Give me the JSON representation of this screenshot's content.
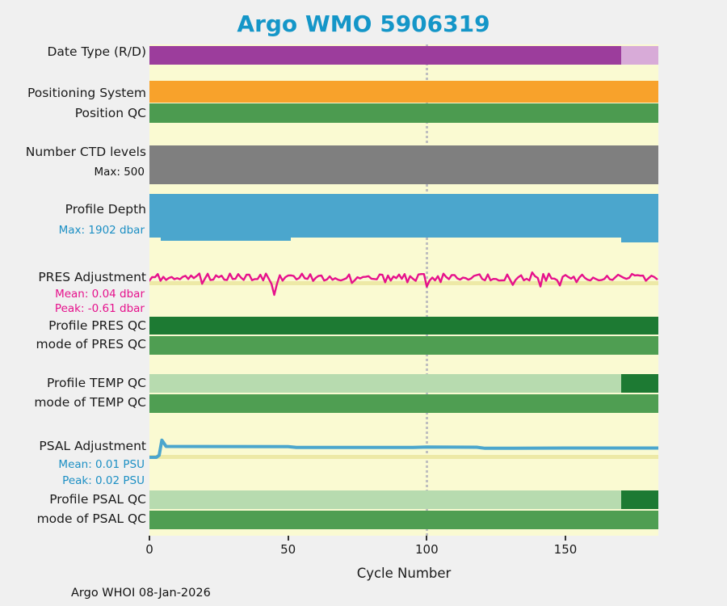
{
  "title": "Argo WMO 5906319",
  "footer": "Argo WHOI 08-Jan-2026",
  "colors": {
    "background": "#F0F0F0",
    "plot_bg": "#FAFAD2",
    "band": "#EDE9A6",
    "marker": "#BFBFBF",
    "title": "#1496C8",
    "text": "#1A1A1A",
    "sub_blue": "#1C8FC4",
    "sub_magenta": "#E6118C"
  },
  "x_axis": {
    "label": "Cycle Number",
    "ticks": [
      0,
      50,
      100,
      150
    ]
  },
  "chart_data": {
    "type": "bar",
    "subtype": "status-timeline",
    "title": "Argo WMO 5906319",
    "xlabel": "Cycle Number",
    "x_range": [
      0,
      183.5
    ],
    "x_ticks": [
      0,
      50,
      100,
      150
    ],
    "marker_x": 100,
    "grid": false,
    "rows": [
      {
        "id": "date-type",
        "label": "Date Type (R/D)",
        "kind": "bar",
        "segments": [
          {
            "from": 0,
            "to": 170,
            "color": "#9C3D9C"
          },
          {
            "from": 170,
            "to": 183.5,
            "color": "#D8ABD8"
          }
        ]
      },
      {
        "id": "positioning-system",
        "label": "Positioning System",
        "kind": "bar",
        "segments": [
          {
            "from": 0,
            "to": 183.5,
            "color": "#F8A22B"
          }
        ]
      },
      {
        "id": "position-qc",
        "label": "Position QC",
        "kind": "bar",
        "segments": [
          {
            "from": 0,
            "to": 183.5,
            "color": "#4C9B50"
          }
        ]
      },
      {
        "id": "ctd-levels",
        "label": "Number CTD levels",
        "sub": [
          {
            "text": "Max: 500",
            "style": "dark"
          }
        ],
        "kind": "bar",
        "segments": [
          {
            "from": 0,
            "to": 183.5,
            "color": "#7F7F7F"
          }
        ]
      },
      {
        "id": "profile-depth",
        "label": "Profile Depth",
        "sub": [
          {
            "text": "Max: 1902 dbar",
            "style": "blue"
          }
        ],
        "kind": "depth-bar",
        "color": "#4BA6CD",
        "max_value": 1902,
        "segments": [
          {
            "from": 0,
            "to": 4,
            "value": 1720
          },
          {
            "from": 4,
            "to": 51,
            "value": 1850
          },
          {
            "from": 51,
            "to": 170,
            "value": 1700
          },
          {
            "from": 170,
            "to": 183.5,
            "value": 1902
          }
        ]
      },
      {
        "id": "pres-adjustment",
        "label": "PRES Adjustment",
        "sub": [
          {
            "text": "Mean: 0.04 dbar",
            "style": "magenta"
          },
          {
            "text": "Peak: -0.61 dbar",
            "style": "magenta"
          }
        ],
        "kind": "line",
        "color": "#E6118C",
        "mean_dbar": 0.04,
        "peak_dbar": -0.61
      },
      {
        "id": "profile-pres-qc",
        "label": "Profile PRES QC",
        "kind": "bar",
        "segments": [
          {
            "from": 0,
            "to": 183.5,
            "color": "#1D7A33"
          }
        ]
      },
      {
        "id": "mode-pres-qc",
        "label": "mode of PRES QC",
        "kind": "bar",
        "segments": [
          {
            "from": 0,
            "to": 183.5,
            "color": "#4F9E52"
          }
        ]
      },
      {
        "id": "profile-temp-qc",
        "label": "Profile TEMP QC",
        "kind": "bar",
        "segments": [
          {
            "from": 0,
            "to": 170,
            "color": "#B7DBAF"
          },
          {
            "from": 170,
            "to": 183.5,
            "color": "#1D7A33"
          }
        ]
      },
      {
        "id": "mode-temp-qc",
        "label": "mode of TEMP QC",
        "kind": "bar",
        "segments": [
          {
            "from": 0,
            "to": 183.5,
            "color": "#4F9E52"
          }
        ]
      },
      {
        "id": "psal-adjustment",
        "label": "PSAL Adjustment",
        "sub": [
          {
            "text": "Mean: 0.01 PSU",
            "style": "blue"
          },
          {
            "text": "Peak: 0.02 PSU",
            "style": "blue"
          }
        ],
        "kind": "line",
        "color": "#4BA6CD",
        "mean_psu": 0.01,
        "peak_psu": 0.02,
        "points": [
          [
            0,
            0
          ],
          [
            2.5,
            0
          ],
          [
            3.5,
            0.002
          ],
          [
            4.5,
            0.017
          ],
          [
            6,
            0.0108
          ],
          [
            50,
            0.0106
          ],
          [
            53,
            0.0098
          ],
          [
            95,
            0.0098
          ],
          [
            100,
            0.0102
          ],
          [
            118,
            0.01
          ],
          [
            121,
            0.009
          ],
          [
            150,
            0.0092
          ],
          [
            183.5,
            0.0092
          ]
        ]
      },
      {
        "id": "profile-psal-qc",
        "label": "Profile PSAL QC",
        "kind": "bar",
        "segments": [
          {
            "from": 0,
            "to": 170,
            "color": "#B7DBAF"
          },
          {
            "from": 170,
            "to": 183.5,
            "color": "#1D7A33"
          }
        ]
      },
      {
        "id": "mode-psal-qc",
        "label": "mode of PSAL QC",
        "kind": "bar",
        "segments": [
          {
            "from": 0,
            "to": 183.5,
            "color": "#4F9E52"
          }
        ]
      }
    ]
  }
}
